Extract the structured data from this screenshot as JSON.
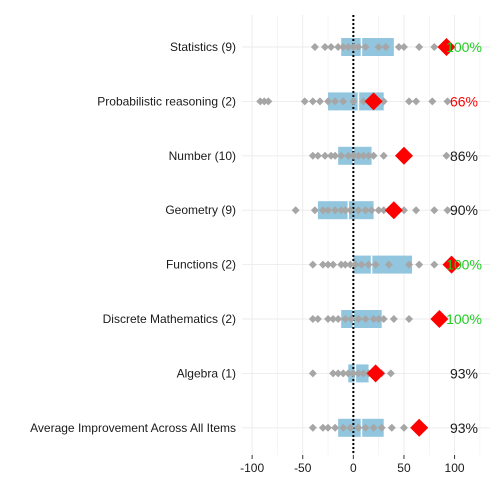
{
  "chart_data": {
    "type": "scatter",
    "title": "",
    "xlabel": "",
    "ylabel": "",
    "xlim": [
      -110,
      135
    ],
    "xticks": [
      -100,
      -50,
      0,
      50,
      100
    ],
    "xtick_labels": [
      "-100",
      "-50",
      "0",
      "50",
      "100"
    ],
    "reference_line_x": 0,
    "grid": true,
    "colors": {
      "box": "#92c5de",
      "points": "#a6a6a6",
      "mean_marker": "#ff0000",
      "pct_green": "#22cc22",
      "pct_red": "#ff0000",
      "pct_black": "#1a1a1a",
      "grid": "#ebebeb"
    },
    "rows": [
      {
        "category": "Statistics (9)",
        "box": {
          "q1": -12,
          "median": 8,
          "q3": 40
        },
        "points": [
          -38,
          -28,
          -22,
          -15,
          -10,
          -5,
          0,
          5,
          12,
          25,
          32,
          45,
          50,
          65,
          80
        ],
        "mean": 92,
        "pct": "100%",
        "pct_color": "green"
      },
      {
        "category": "Probabilistic reasoning (2)",
        "box": {
          "q1": -25,
          "median": 5,
          "q3": 30
        },
        "points": [
          -92,
          -88,
          -84,
          -48,
          -40,
          -33,
          -25,
          -18,
          -10,
          0,
          10,
          15,
          22,
          30,
          55,
          62,
          78,
          93
        ],
        "mean": 20,
        "pct": "66%",
        "pct_color": "red"
      },
      {
        "category": "Number (10)",
        "box": {
          "q1": -15,
          "median": 0,
          "q3": 18
        },
        "points": [
          -40,
          -35,
          -28,
          -22,
          -18,
          -12,
          -5,
          0,
          5,
          10,
          15,
          20,
          30,
          92
        ],
        "mean": 50,
        "pct": "86%",
        "pct_color": "black"
      },
      {
        "category": "Geometry (9)",
        "box": {
          "q1": -35,
          "median": -5,
          "q3": 20
        },
        "points": [
          -57,
          -38,
          -30,
          -25,
          -18,
          -12,
          -8,
          -3,
          5,
          12,
          18,
          25,
          30,
          35,
          50,
          62,
          80,
          93
        ],
        "mean": 40,
        "pct": "90%",
        "pct_color": "black"
      },
      {
        "category": "Functions (2)",
        "box": {
          "q1": 0,
          "median": 18,
          "q3": 58
        },
        "points": [
          -40,
          -30,
          -25,
          -20,
          -12,
          -8,
          -3,
          2,
          8,
          15,
          22,
          35,
          55,
          65,
          80,
          95
        ],
        "mean": 97,
        "pct": "100%",
        "pct_color": "green"
      },
      {
        "category": "Discrete Mathematics (2)",
        "box": {
          "q1": -12,
          "median": 0,
          "q3": 28
        },
        "points": [
          -40,
          -35,
          -25,
          -20,
          -15,
          -8,
          -2,
          5,
          12,
          20,
          25,
          30,
          40,
          55
        ],
        "mean": 85,
        "pct": "100%",
        "pct_color": "green"
      },
      {
        "category": "Algebra (1)",
        "box": {
          "q1": -5,
          "median": 2,
          "q3": 15
        },
        "points": [
          -40,
          -20,
          -15,
          -10,
          -5,
          0,
          5,
          10,
          15,
          22,
          28,
          37
        ],
        "mean": 22,
        "pct": "93%",
        "pct_color": "black"
      },
      {
        "category": "Average Improvement Across All Items",
        "box": {
          "q1": -15,
          "median": 8,
          "q3": 30
        },
        "points": [
          -40,
          -30,
          -25,
          -18,
          -10,
          -3,
          5,
          12,
          20,
          28,
          38,
          50,
          70
        ],
        "mean": 65,
        "pct": "93%",
        "pct_color": "black"
      }
    ]
  }
}
